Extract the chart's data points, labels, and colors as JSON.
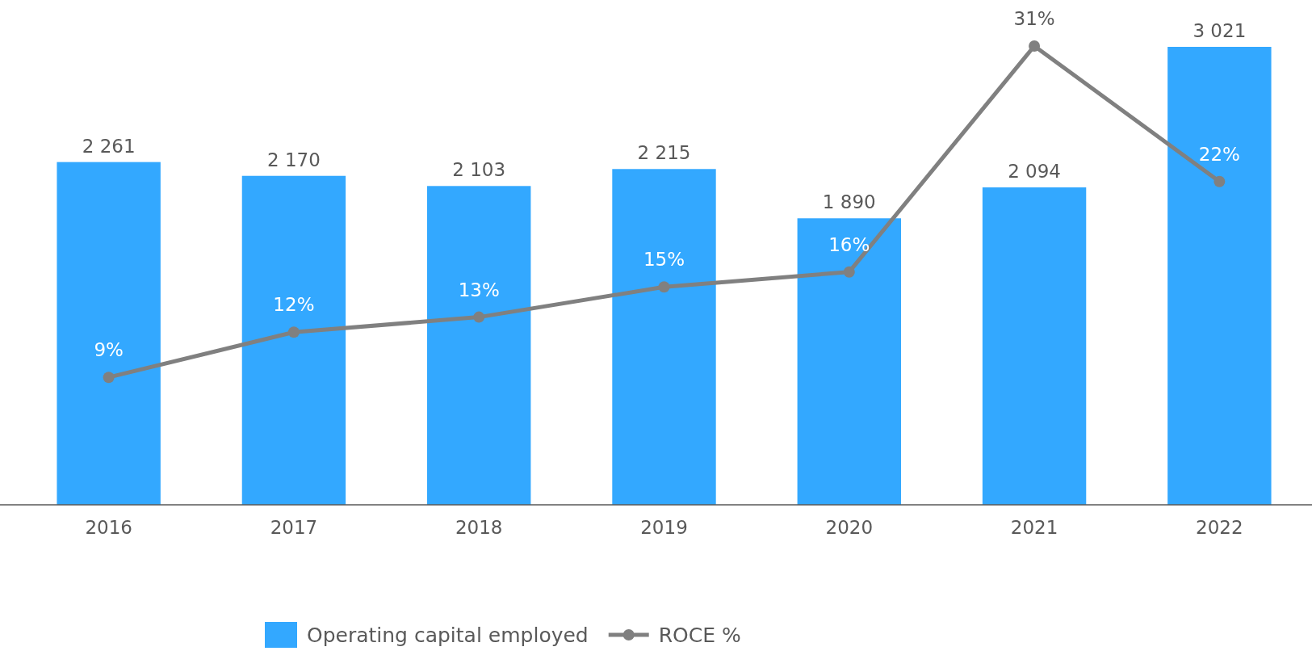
{
  "chart_data": {
    "type": "bar",
    "categories": [
      "2016",
      "2017",
      "2018",
      "2019",
      "2020",
      "2021",
      "2022"
    ],
    "series": [
      {
        "name": "Operating capital employed",
        "color": "#33a8ff",
        "values": [
          2261,
          2170,
          2103,
          2215,
          1890,
          2094,
          3021
        ],
        "value_labels": [
          "2 261",
          "2 170",
          "2 103",
          "2 215",
          "1 890",
          "2 094",
          "3 021"
        ]
      },
      {
        "name": "ROCE %",
        "type": "line",
        "axis": "y2",
        "color": "#808080",
        "marker": "circle",
        "values": [
          9,
          12,
          13,
          15,
          16,
          31,
          22
        ],
        "value_labels": [
          "9%",
          "12%",
          "13%",
          "15%",
          "16%",
          "31%",
          "22%"
        ]
      }
    ],
    "legend": "bottom",
    "tick_labels": "x"
  }
}
